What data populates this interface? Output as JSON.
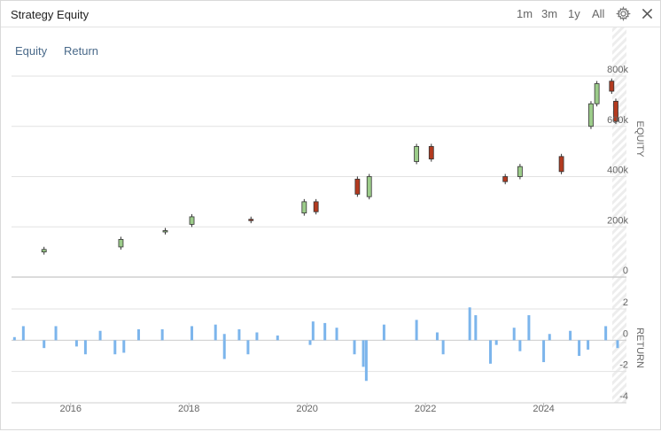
{
  "header": {
    "title": "Strategy Equity",
    "range_buttons": [
      "1m",
      "3m",
      "1y",
      "All"
    ],
    "icons": [
      "gear-icon",
      "close-icon"
    ]
  },
  "tabs": [
    "Equity",
    "Return"
  ],
  "colors": {
    "up": "#9ccc8a",
    "down": "#b33a1f",
    "return_bar": "#7cb5ec",
    "grid": "#e2e2e2",
    "text": "#666666"
  },
  "chart_data": [
    {
      "type": "candlestick",
      "ylabel": "EQUITY",
      "ylim": [
        0,
        800000
      ],
      "yticks": [
        "800k",
        "600k",
        "400k",
        "200k",
        "0"
      ],
      "x_range": [
        2015.0,
        2025.4
      ],
      "series": [
        {
          "x": 2015.55,
          "open": 100000,
          "close": 110000
        },
        {
          "x": 2016.85,
          "open": 120000,
          "close": 150000
        },
        {
          "x": 2017.6,
          "open": 180000,
          "close": 185000
        },
        {
          "x": 2018.05,
          "open": 210000,
          "close": 240000
        },
        {
          "x": 2019.05,
          "open": 230000,
          "close": 225000
        },
        {
          "x": 2019.95,
          "open": 255000,
          "close": 300000
        },
        {
          "x": 2020.15,
          "open": 300000,
          "close": 260000
        },
        {
          "x": 2020.85,
          "open": 390000,
          "close": 330000
        },
        {
          "x": 2021.05,
          "open": 320000,
          "close": 400000
        },
        {
          "x": 2021.85,
          "open": 460000,
          "close": 520000
        },
        {
          "x": 2022.1,
          "open": 520000,
          "close": 470000
        },
        {
          "x": 2023.35,
          "open": 400000,
          "close": 380000
        },
        {
          "x": 2023.6,
          "open": 400000,
          "close": 440000
        },
        {
          "x": 2024.3,
          "open": 480000,
          "close": 420000
        },
        {
          "x": 2024.8,
          "open": 600000,
          "close": 690000
        },
        {
          "x": 2024.9,
          "open": 690000,
          "close": 770000
        },
        {
          "x": 2025.15,
          "open": 780000,
          "close": 740000
        },
        {
          "x": 2025.22,
          "open": 700000,
          "close": 620000
        }
      ]
    },
    {
      "type": "bar",
      "ylabel": "RETURN",
      "ylim": [
        -4,
        2
      ],
      "yticks": [
        "2",
        "0",
        "-2",
        "-4"
      ],
      "values": [
        {
          "x": 2015.05,
          "y": 0.2
        },
        {
          "x": 2015.2,
          "y": 0.9
        },
        {
          "x": 2015.55,
          "y": -0.5
        },
        {
          "x": 2015.75,
          "y": 0.9
        },
        {
          "x": 2016.1,
          "y": -0.4
        },
        {
          "x": 2016.25,
          "y": -0.9
        },
        {
          "x": 2016.5,
          "y": 0.6
        },
        {
          "x": 2016.75,
          "y": -0.9
        },
        {
          "x": 2016.9,
          "y": -0.8
        },
        {
          "x": 2017.15,
          "y": 0.7
        },
        {
          "x": 2017.55,
          "y": 0.7
        },
        {
          "x": 2018.05,
          "y": 0.9
        },
        {
          "x": 2018.45,
          "y": 1.0
        },
        {
          "x": 2018.6,
          "y": 0.4
        },
        {
          "x": 2018.6,
          "y": -1.2
        },
        {
          "x": 2018.85,
          "y": 0.7
        },
        {
          "x": 2019.0,
          "y": -0.9
        },
        {
          "x": 2019.15,
          "y": 0.5
        },
        {
          "x": 2019.5,
          "y": 0.3
        },
        {
          "x": 2020.05,
          "y": -0.3
        },
        {
          "x": 2020.1,
          "y": 1.2
        },
        {
          "x": 2020.3,
          "y": 1.1
        },
        {
          "x": 2020.5,
          "y": 0.8
        },
        {
          "x": 2020.8,
          "y": -0.9
        },
        {
          "x": 2020.95,
          "y": -1.7
        },
        {
          "x": 2021.0,
          "y": -2.6
        },
        {
          "x": 2021.3,
          "y": 1.0
        },
        {
          "x": 2021.85,
          "y": 1.3
        },
        {
          "x": 2022.2,
          "y": 0.5
        },
        {
          "x": 2022.3,
          "y": -0.9
        },
        {
          "x": 2022.75,
          "y": 2.1
        },
        {
          "x": 2022.85,
          "y": 1.6
        },
        {
          "x": 2023.1,
          "y": -1.5
        },
        {
          "x": 2023.2,
          "y": -0.3
        },
        {
          "x": 2023.5,
          "y": 0.8
        },
        {
          "x": 2023.6,
          "y": -0.7
        },
        {
          "x": 2023.75,
          "y": 1.6
        },
        {
          "x": 2024.0,
          "y": -1.4
        },
        {
          "x": 2024.1,
          "y": 0.4
        },
        {
          "x": 2024.45,
          "y": 0.6
        },
        {
          "x": 2024.6,
          "y": -1.0
        },
        {
          "x": 2024.75,
          "y": -0.6
        },
        {
          "x": 2025.05,
          "y": 0.9
        },
        {
          "x": 2025.25,
          "y": -0.5
        }
      ]
    }
  ],
  "x_axis": {
    "range": [
      2015.0,
      2025.4
    ],
    "ticks": [
      {
        "value": 2016,
        "label": "2016"
      },
      {
        "value": 2018,
        "label": "2018"
      },
      {
        "value": 2020,
        "label": "2020"
      },
      {
        "value": 2022,
        "label": "2022"
      },
      {
        "value": 2024,
        "label": "2024"
      }
    ]
  }
}
